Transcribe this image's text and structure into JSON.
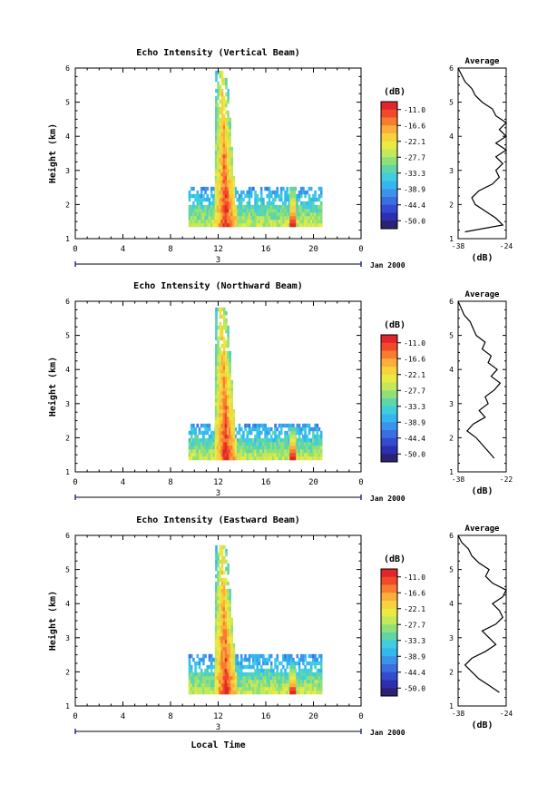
{
  "figure": {
    "shared_xlabel": "Local Time",
    "colorbar_unit": "(dB)",
    "colorbar_ticks": [
      "-11.0",
      "-16.6",
      "-22.1",
      "-27.7",
      "-33.3",
      "-38.9",
      "-44.4",
      "-50.0"
    ],
    "colorbar_colors": [
      "#e0262a",
      "#f2492a",
      "#f77c30",
      "#fbae3a",
      "#f6d33c",
      "#e9ea44",
      "#c3e85a",
      "#90e07a",
      "#5fd5a8",
      "#3fcde0",
      "#34b6ee",
      "#3c93ea",
      "#3a6fe0",
      "#344ad0",
      "#2c2fb0",
      "#2a2272"
    ],
    "date_label": "3",
    "month_label": "Jan 2000",
    "average_xlabel": "(dB)"
  },
  "chart_data": [
    {
      "type": "heatmap",
      "title": "Echo Intensity (Vertical Beam)",
      "xlabel": "",
      "ylabel": "Height (km)",
      "xlim": [
        0,
        24
      ],
      "ylim": [
        1,
        6
      ],
      "xticks": [
        "0",
        "4",
        "8",
        "12",
        "16",
        "20",
        "0"
      ],
      "yticks": [
        "1",
        "2",
        "3",
        "4",
        "5",
        "6"
      ],
      "z_unit": "dB",
      "z_range": [
        -50.0,
        -11.0
      ],
      "features": [
        {
          "kind": "low-cloud layer",
          "x_start": 9.5,
          "x_end": 20.6,
          "y_base": 1.35,
          "y_top": 2.5,
          "value": -33
        },
        {
          "kind": "rain band",
          "x_center": 12.6,
          "y_base": 1.35,
          "y_top": 5.9,
          "value": -12
        },
        {
          "kind": "narrow shower",
          "x_center": 18.2,
          "y_base": 1.35,
          "y_top": 2.5,
          "value": -14
        }
      ],
      "average": {
        "title": "Average",
        "xlabel": "(dB)",
        "xlim": [
          -38,
          -24
        ],
        "xticks": [
          "-38",
          "-24"
        ],
        "ylim": [
          1,
          6
        ],
        "yticks": [
          "1",
          "2",
          "3",
          "4",
          "5",
          "6"
        ],
        "profile": {
          "height": [
            1.2,
            1.4,
            1.6,
            1.8,
            2.0,
            2.2,
            2.4,
            2.6,
            2.8,
            3.0,
            3.2,
            3.4,
            3.6,
            3.8,
            4.0,
            4.2,
            4.4,
            4.6,
            4.8,
            5.0,
            5.2,
            5.4,
            5.6,
            5.8,
            6.0
          ],
          "db": [
            -36,
            -25,
            -27,
            -30,
            -33,
            -34,
            -32,
            -28,
            -26,
            -27,
            -25,
            -27,
            -24,
            -27,
            -24,
            -26,
            -24,
            -27,
            -28,
            -31,
            -33,
            -34,
            -36,
            -37,
            -38
          ]
        }
      }
    },
    {
      "type": "heatmap",
      "title": "Echo Intensity (Northward Beam)",
      "xlabel": "",
      "ylabel": "Height (km)",
      "xlim": [
        0,
        24
      ],
      "ylim": [
        1,
        6
      ],
      "xticks": [
        "0",
        "4",
        "8",
        "12",
        "16",
        "20",
        "0"
      ],
      "yticks": [
        "1",
        "2",
        "3",
        "4",
        "5",
        "6"
      ],
      "z_unit": "dB",
      "z_range": [
        -50.0,
        -11.0
      ],
      "features": [
        {
          "kind": "low-cloud layer",
          "x_start": 9.5,
          "x_end": 20.6,
          "y_base": 1.35,
          "y_top": 2.4,
          "value": -33
        },
        {
          "kind": "rain band",
          "x_center": 12.6,
          "y_base": 1.35,
          "y_top": 5.8,
          "value": -12
        },
        {
          "kind": "narrow shower",
          "x_center": 18.2,
          "y_base": 1.35,
          "y_top": 2.3,
          "value": -14
        }
      ],
      "average": {
        "title": "Average",
        "xlabel": "(dB)",
        "xlim": [
          -38,
          -22
        ],
        "xticks": [
          "-38",
          "-22"
        ],
        "ylim": [
          1,
          6
        ],
        "yticks": [
          "1",
          "2",
          "3",
          "4",
          "5",
          "6"
        ],
        "profile": {
          "height": [
            1.4,
            1.6,
            1.8,
            2.0,
            2.2,
            2.4,
            2.6,
            2.8,
            3.0,
            3.2,
            3.4,
            3.6,
            3.8,
            4.0,
            4.2,
            4.4,
            4.6,
            4.8,
            5.0,
            5.2,
            5.4,
            5.6,
            5.8,
            6.0
          ],
          "db": [
            -26,
            -28,
            -30,
            -32,
            -35,
            -33,
            -29,
            -31,
            -28,
            -29,
            -26,
            -24,
            -27,
            -25,
            -28,
            -27,
            -30,
            -29,
            -32,
            -33,
            -34,
            -36,
            -37,
            -38
          ]
        }
      }
    },
    {
      "type": "heatmap",
      "title": "Echo Intensity (Eastward Beam)",
      "xlabel": "Local Time",
      "ylabel": "Height (km)",
      "xlim": [
        0,
        24
      ],
      "ylim": [
        1,
        6
      ],
      "xticks": [
        "0",
        "4",
        "8",
        "12",
        "16",
        "20",
        "0"
      ],
      "yticks": [
        "1",
        "2",
        "3",
        "4",
        "5",
        "6"
      ],
      "z_unit": "dB",
      "z_range": [
        -50.0,
        -11.0
      ],
      "features": [
        {
          "kind": "low-cloud layer",
          "x_start": 9.5,
          "x_end": 20.6,
          "y_base": 1.35,
          "y_top": 2.5,
          "value": -33
        },
        {
          "kind": "rain band",
          "x_center": 12.6,
          "y_base": 1.35,
          "y_top": 5.7,
          "value": -12
        },
        {
          "kind": "narrow shower",
          "x_center": 18.2,
          "y_base": 1.35,
          "y_top": 2.2,
          "value": -14
        }
      ],
      "average": {
        "title": "Average",
        "xlabel": "(dB)",
        "xlim": [
          -38,
          -24
        ],
        "xticks": [
          "-38",
          "-24"
        ],
        "ylim": [
          1,
          6
        ],
        "yticks": [
          "1",
          "2",
          "3",
          "4",
          "5",
          "6"
        ],
        "profile": {
          "height": [
            1.4,
            1.6,
            1.8,
            2.0,
            2.2,
            2.4,
            2.6,
            2.8,
            3.0,
            3.2,
            3.4,
            3.6,
            3.8,
            4.0,
            4.2,
            4.4,
            4.6,
            4.8,
            5.0,
            5.2,
            5.4,
            5.6,
            5.8,
            6.0
          ],
          "db": [
            -26,
            -29,
            -32,
            -34,
            -36,
            -34,
            -30,
            -27,
            -29,
            -31,
            -27,
            -25,
            -26,
            -28,
            -25,
            -24,
            -28,
            -30,
            -29,
            -32,
            -34,
            -35,
            -37,
            -38
          ]
        }
      }
    }
  ]
}
